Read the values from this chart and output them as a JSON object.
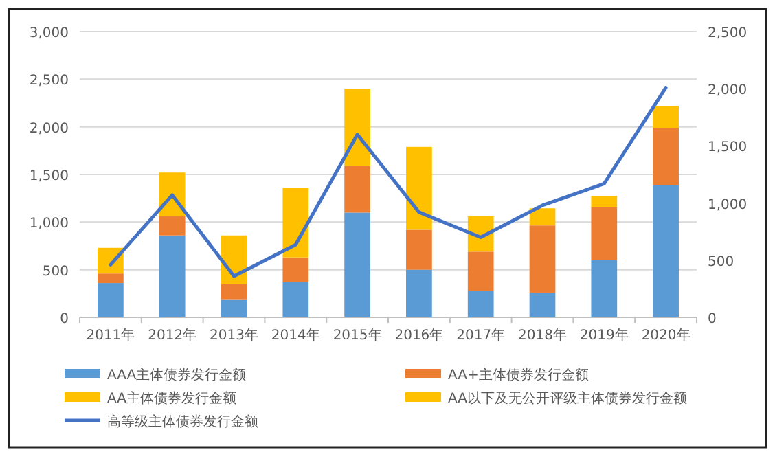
{
  "chart_data": {
    "type": "bar",
    "stacked": true,
    "grid": "y",
    "legend": "bottom",
    "marker": "none",
    "categories": [
      "2011年",
      "2012年",
      "2013年",
      "2014年",
      "2015年",
      "2016年",
      "2017年",
      "2018年",
      "2019年",
      "2020年"
    ],
    "series": [
      {
        "name": "AAA主体债券发行金额",
        "color": "#5b9bd5",
        "values": [
          360,
          860,
          190,
          370,
          1100,
          500,
          275,
          260,
          600,
          1390
        ]
      },
      {
        "name": "AA+主体债券发行金额",
        "color": "#ed7d31",
        "values": [
          100,
          200,
          160,
          260,
          490,
          420,
          415,
          705,
          555,
          600
        ]
      },
      {
        "name": "AA主体债券发行金额",
        "color": "#ffc000",
        "values": [
          270,
          460,
          510,
          730,
          810,
          870,
          370,
          180,
          120,
          230
        ]
      },
      {
        "name": "AA以下及无公开评级主体债券发行金额",
        "color": "#ffc000",
        "values": [
          null,
          null,
          null,
          null,
          null,
          null,
          null,
          null,
          null,
          null
        ]
      },
      {
        "name": "高等级主体债券发行金额",
        "type": "line",
        "axis": "y2",
        "color": "#4472c4",
        "values": [
          460,
          1070,
          360,
          635,
          1600,
          920,
          700,
          980,
          1170,
          2010
        ]
      }
    ],
    "ylim": [
      0,
      3000
    ],
    "yticks": [
      0,
      {
        "value": 500,
        "label": "500"
      },
      {
        "value": 1000,
        "label": "1,000"
      },
      {
        "value": 1500,
        "label": "1,500"
      },
      {
        "value": 2000,
        "label": "2,000"
      },
      {
        "value": 2500,
        "label": "2,500"
      },
      {
        "value": 3000,
        "label": "3,000"
      }
    ],
    "y2lim": [
      0,
      2500
    ],
    "y2ticks": [
      0,
      {
        "value": 500,
        "label": "500"
      },
      {
        "value": 1000,
        "label": "1,000"
      },
      {
        "value": 1500,
        "label": "1,500"
      },
      {
        "value": 2000,
        "label": "2,000"
      },
      {
        "value": 2500,
        "label": "2,500"
      }
    ]
  }
}
